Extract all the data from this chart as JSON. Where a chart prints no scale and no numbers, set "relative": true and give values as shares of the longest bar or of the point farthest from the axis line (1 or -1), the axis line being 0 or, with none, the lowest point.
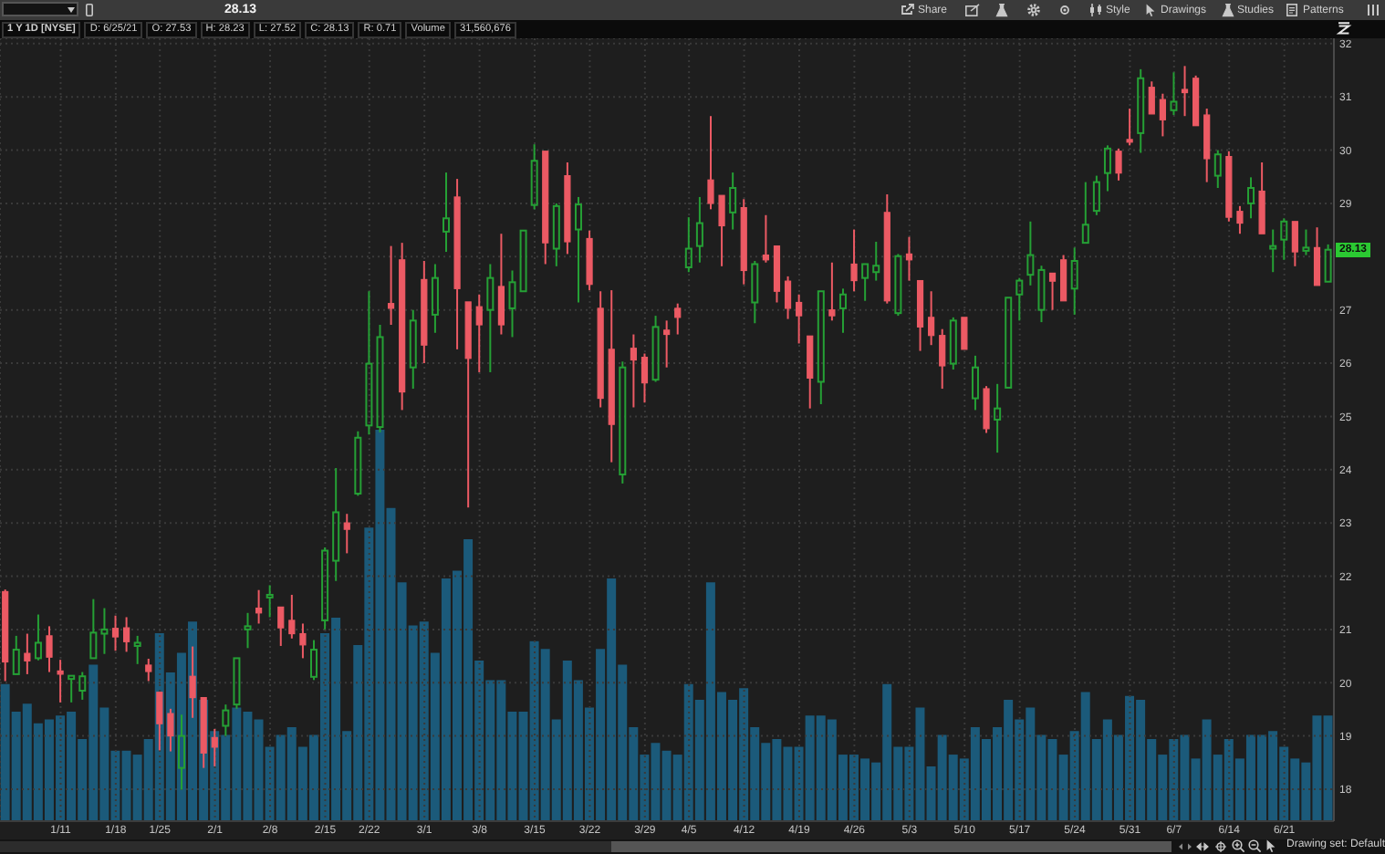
{
  "chart_data": [
    {
      "type": "candlestick",
      "title": "1 Y 1D [NYSE]",
      "categories": [
        null,
        null,
        null,
        null,
        null,
        "1/11",
        null,
        null,
        null,
        null,
        "1/18",
        null,
        null,
        null,
        "1/25",
        null,
        null,
        null,
        null,
        "2/1",
        null,
        null,
        null,
        null,
        "2/8",
        null,
        null,
        null,
        null,
        "2/15",
        null,
        null,
        null,
        "2/22",
        null,
        null,
        null,
        null,
        "3/1",
        null,
        null,
        null,
        null,
        "3/8",
        null,
        null,
        null,
        null,
        "3/15",
        null,
        null,
        null,
        null,
        "3/22",
        null,
        null,
        null,
        null,
        "3/29",
        null,
        null,
        null,
        "4/5",
        null,
        null,
        null,
        null,
        "4/12",
        null,
        null,
        null,
        null,
        "4/19",
        null,
        null,
        null,
        null,
        "4/26",
        null,
        null,
        null,
        null,
        "5/3",
        null,
        null,
        null,
        null,
        "5/10",
        null,
        null,
        null,
        null,
        "5/17",
        null,
        null,
        null,
        null,
        "5/24",
        null,
        null,
        null,
        null,
        "5/31",
        null,
        null,
        null,
        "6/7",
        null,
        null,
        null,
        null,
        "6/14",
        null,
        null,
        null,
        null,
        "6/21",
        null,
        null,
        null,
        null
      ],
      "ohlc": [
        [
          21.71,
          21.75,
          20.03,
          20.39
        ],
        [
          20.16,
          20.88,
          20.14,
          20.62
        ],
        [
          20.55,
          20.92,
          20.16,
          20.41
        ],
        [
          20.46,
          21.28,
          20.42,
          20.75
        ],
        [
          20.88,
          21.06,
          20.2,
          20.48
        ],
        [
          20.22,
          20.43,
          19.63,
          20.16
        ],
        [
          20.07,
          20.16,
          19.63,
          20.13
        ],
        [
          19.85,
          20.2,
          19.68,
          20.12
        ],
        [
          20.46,
          21.57,
          20.43,
          20.94
        ],
        [
          20.92,
          21.4,
          20.54,
          21.0
        ],
        [
          21.02,
          21.26,
          20.6,
          20.86
        ],
        [
          21.03,
          21.23,
          20.58,
          20.77
        ],
        [
          20.69,
          20.88,
          20.35,
          20.75
        ],
        [
          20.33,
          20.45,
          20.03,
          20.21
        ],
        [
          19.82,
          19.84,
          18.73,
          19.23
        ],
        [
          19.42,
          19.51,
          18.71,
          19.0
        ],
        [
          18.4,
          19.4,
          17.99,
          19.0
        ],
        [
          20.12,
          20.68,
          19.34,
          19.72
        ],
        [
          19.72,
          19.74,
          18.4,
          18.68
        ],
        [
          18.97,
          19.13,
          18.43,
          18.79
        ],
        [
          19.19,
          19.59,
          19.0,
          19.48
        ],
        [
          19.59,
          20.48,
          19.51,
          20.46
        ],
        [
          21.0,
          21.31,
          20.65,
          21.06
        ],
        [
          21.4,
          21.74,
          21.11,
          21.31
        ],
        [
          21.6,
          21.83,
          21.23,
          21.65
        ],
        [
          21.42,
          21.45,
          20.69,
          21.03
        ],
        [
          21.17,
          21.65,
          20.83,
          20.92
        ],
        [
          20.92,
          21.11,
          20.46,
          20.71
        ],
        [
          20.11,
          20.8,
          20.05,
          20.62
        ],
        [
          21.17,
          22.54,
          21.0,
          22.48
        ],
        [
          22.29,
          24.03,
          21.91,
          23.2
        ],
        [
          23.0,
          23.17,
          22.43,
          22.88
        ],
        [
          23.55,
          24.72,
          23.51,
          24.6
        ],
        [
          24.83,
          27.35,
          24.66,
          25.99
        ],
        [
          24.8,
          26.72,
          24.7,
          26.49
        ],
        [
          27.12,
          28.2,
          26.72,
          27.03
        ],
        [
          27.94,
          28.26,
          25.12,
          25.46
        ],
        [
          25.92,
          27.0,
          25.52,
          26.8
        ],
        [
          27.57,
          27.92,
          26.0,
          26.34
        ],
        [
          26.91,
          27.86,
          26.57,
          27.6
        ],
        [
          28.47,
          29.58,
          28.09,
          28.72
        ],
        [
          29.12,
          29.46,
          26.26,
          27.4
        ],
        [
          27.15,
          27.15,
          23.29,
          26.09
        ],
        [
          27.06,
          27.29,
          25.83,
          26.72
        ],
        [
          27.0,
          27.86,
          25.83,
          27.6
        ],
        [
          27.44,
          28.43,
          26.54,
          26.72
        ],
        [
          27.03,
          27.74,
          26.49,
          27.52
        ],
        [
          27.35,
          28.51,
          27.32,
          28.49
        ],
        [
          28.97,
          30.11,
          28.89,
          29.8
        ],
        [
          29.98,
          30.0,
          27.86,
          28.26
        ],
        [
          28.15,
          29.0,
          27.82,
          28.95
        ],
        [
          29.52,
          29.77,
          28.05,
          28.28
        ],
        [
          28.51,
          29.12,
          27.14,
          28.98
        ],
        [
          28.34,
          28.49,
          27.37,
          27.48
        ],
        [
          27.03,
          27.35,
          25.17,
          25.34
        ],
        [
          26.26,
          27.37,
          24.14,
          24.85
        ],
        [
          23.91,
          26.03,
          23.74,
          25.92
        ],
        [
          26.28,
          26.54,
          25.17,
          26.06
        ],
        [
          26.11,
          26.18,
          25.26,
          25.63
        ],
        [
          25.69,
          26.89,
          25.65,
          26.68
        ],
        [
          26.62,
          26.8,
          25.92,
          26.54
        ],
        [
          27.03,
          27.12,
          26.54,
          26.86
        ],
        [
          27.8,
          28.74,
          27.71,
          28.15
        ],
        [
          28.2,
          29.12,
          27.89,
          28.63
        ],
        [
          29.44,
          30.64,
          28.89,
          29.0
        ],
        [
          29.15,
          29.17,
          27.82,
          28.58
        ],
        [
          28.83,
          29.58,
          28.51,
          29.29
        ],
        [
          28.92,
          29.08,
          27.48,
          27.74
        ],
        [
          27.14,
          27.92,
          26.75,
          27.86
        ],
        [
          28.03,
          28.78,
          27.89,
          27.94
        ],
        [
          28.2,
          28.23,
          27.14,
          27.35
        ],
        [
          27.54,
          27.63,
          26.83,
          27.03
        ],
        [
          27.14,
          27.29,
          26.37,
          26.89
        ],
        [
          26.51,
          26.54,
          25.15,
          25.72
        ],
        [
          25.65,
          27.37,
          25.23,
          27.35
        ],
        [
          27.0,
          27.89,
          26.8,
          26.89
        ],
        [
          27.03,
          27.4,
          26.57,
          27.29
        ],
        [
          27.86,
          28.51,
          27.35,
          27.55
        ],
        [
          27.6,
          27.89,
          27.17,
          27.86
        ],
        [
          27.71,
          28.28,
          27.55,
          27.83
        ],
        [
          28.83,
          29.17,
          27.12,
          27.17
        ],
        [
          26.94,
          28.05,
          26.89,
          28.01
        ],
        [
          28.05,
          28.37,
          27.55,
          27.94
        ],
        [
          27.55,
          27.57,
          26.23,
          26.68
        ],
        [
          26.86,
          27.35,
          26.34,
          26.52
        ],
        [
          26.52,
          26.64,
          25.52,
          25.95
        ],
        [
          25.99,
          26.86,
          25.88,
          26.8
        ],
        [
          26.86,
          26.89,
          26.23,
          26.26
        ],
        [
          25.34,
          26.14,
          25.12,
          25.92
        ],
        [
          25.52,
          25.57,
          24.69,
          24.77
        ],
        [
          24.94,
          25.61,
          24.32,
          25.15
        ],
        [
          25.54,
          27.25,
          25.52,
          27.23
        ],
        [
          27.29,
          27.6,
          26.8,
          27.55
        ],
        [
          27.66,
          28.66,
          27.46,
          28.03
        ],
        [
          27.0,
          27.83,
          26.77,
          27.75
        ],
        [
          27.69,
          27.71,
          27.0,
          27.54
        ],
        [
          27.94,
          28.03,
          27.14,
          27.17
        ],
        [
          27.4,
          28.17,
          26.91,
          27.92
        ],
        [
          28.26,
          29.4,
          28.24,
          28.6
        ],
        [
          28.86,
          29.52,
          28.78,
          29.4
        ],
        [
          29.57,
          30.09,
          29.23,
          30.03
        ],
        [
          29.98,
          30.03,
          29.43,
          29.57
        ],
        [
          30.2,
          30.78,
          30.09,
          30.15
        ],
        [
          30.32,
          31.52,
          29.95,
          31.35
        ],
        [
          31.18,
          31.29,
          30.66,
          30.68
        ],
        [
          30.95,
          31.06,
          30.26,
          30.57
        ],
        [
          30.75,
          31.46,
          30.66,
          30.91
        ],
        [
          31.14,
          31.58,
          30.64,
          31.08
        ],
        [
          31.35,
          31.4,
          30.43,
          30.46
        ],
        [
          30.66,
          30.78,
          29.4,
          29.84
        ],
        [
          29.52,
          30.0,
          29.29,
          29.92
        ],
        [
          29.88,
          29.98,
          28.66,
          28.74
        ],
        [
          28.85,
          28.95,
          28.43,
          28.63
        ],
        [
          29.0,
          29.49,
          28.72,
          29.29
        ],
        [
          29.23,
          29.77,
          28.4,
          28.43
        ],
        [
          28.15,
          28.51,
          27.71,
          28.2
        ],
        [
          28.32,
          28.72,
          27.94,
          28.66
        ],
        [
          28.66,
          28.69,
          27.82,
          28.09
        ],
        [
          28.11,
          28.51,
          28.03,
          28.17
        ],
        [
          28.17,
          28.55,
          27.44,
          27.46
        ],
        [
          27.53,
          28.23,
          27.52,
          28.13
        ]
      ],
      "colors": [
        "#ec5a64",
        "#25a035",
        "#ec5a64",
        "#25a035",
        "#ec5a64",
        "#ec5a64",
        "#25a035",
        "#25a035",
        "#25a035",
        "#25a035",
        "#ec5a64",
        "#ec5a64",
        "#25a035",
        "#ec5a64",
        "#ec5a64",
        "#ec5a64",
        "#25a035",
        "#ec5a64",
        "#ec5a64",
        "#ec5a64",
        "#25a035",
        "#25a035",
        "#25a035",
        "#ec5a64",
        "#25a035",
        "#ec5a64",
        "#ec5a64",
        "#ec5a64",
        "#25a035",
        "#25a035",
        "#25a035",
        "#ec5a64",
        "#25a035",
        "#25a035",
        "#25a035",
        "#ec5a64",
        "#ec5a64",
        "#25a035",
        "#ec5a64",
        "#25a035",
        "#25a035",
        "#ec5a64",
        "#ec5a64",
        "#ec5a64",
        "#25a035",
        "#ec5a64",
        "#25a035",
        "#25a035",
        "#25a035",
        "#ec5a64",
        "#25a035",
        "#ec5a64",
        "#25a035",
        "#ec5a64",
        "#ec5a64",
        "#ec5a64",
        "#25a035",
        "#ec5a64",
        "#ec5a64",
        "#25a035",
        "#ec5a64",
        "#ec5a64",
        "#25a035",
        "#25a035",
        "#ec5a64",
        "#ec5a64",
        "#25a035",
        "#ec5a64",
        "#25a035",
        "#ec5a64",
        "#ec5a64",
        "#ec5a64",
        "#ec5a64",
        "#ec5a64",
        "#25a035",
        "#ec5a64",
        "#25a035",
        "#ec5a64",
        "#25a035",
        "#25a035",
        "#ec5a64",
        "#25a035",
        "#ec5a64",
        "#ec5a64",
        "#ec5a64",
        "#ec5a64",
        "#25a035",
        "#ec5a64",
        "#25a035",
        "#ec5a64",
        "#25a035",
        "#25a035",
        "#25a035",
        "#25a035",
        "#25a035",
        "#ec5a64",
        "#ec5a64",
        "#25a035",
        "#25a035",
        "#25a035",
        "#25a035",
        "#ec5a64",
        "#ec5a64",
        "#25a035",
        "#ec5a64",
        "#ec5a64",
        "#25a035",
        "#ec5a64",
        "#ec5a64",
        "#ec5a64",
        "#25a035",
        "#ec5a64",
        "#ec5a64",
        "#25a035",
        "#ec5a64",
        "#25a035",
        "#25a035",
        "#ec5a64",
        "#25a035",
        "#ec5a64",
        "#25a035"
      ],
      "ylim": [
        17.4,
        32.1
      ],
      "yticks": [
        18,
        19,
        20,
        21,
        22,
        23,
        24,
        25,
        26,
        27,
        {
          "value": 28,
          "label": null
        },
        29,
        30,
        31,
        32
      ],
      "grid": true,
      "annotations": [
        "28.13",
        "D: 6/25/21",
        "O: 27.53",
        "H: 28.23",
        "L: 27.52",
        "C: 28.13",
        "R: 0.71",
        "Volume",
        "31,560,676",
        "Share",
        "Style",
        "Drawings",
        "Studies",
        "Patterns",
        "Drawing set: Default",
        {
          "text": "28.13",
          "y": 28.13
        }
      ]
    },
    {
      "type": "bar",
      "relative": true,
      "color": "#1b5a7a",
      "categories": [
        null,
        null,
        null,
        null,
        null,
        null,
        null,
        null,
        null,
        null,
        null,
        null,
        null,
        null,
        null,
        null,
        null,
        null,
        null,
        null,
        null,
        null,
        null,
        null,
        null,
        null,
        null,
        null,
        null,
        null,
        null,
        null,
        null,
        null,
        null,
        null,
        null,
        null,
        null,
        null,
        null,
        null,
        null,
        null,
        null,
        null,
        null,
        null,
        null,
        null,
        null,
        null,
        null,
        null,
        null,
        null,
        null,
        null,
        null,
        null,
        null,
        null,
        null,
        null,
        null,
        null,
        null,
        null,
        null,
        null,
        null,
        null,
        null,
        null,
        null,
        null,
        null,
        null,
        null,
        null,
        null,
        null,
        null,
        null,
        null,
        null,
        null,
        null,
        null,
        null,
        null,
        null,
        null,
        null,
        null,
        null,
        null,
        null,
        null,
        null,
        null,
        null,
        null,
        null,
        null,
        null,
        null,
        null,
        null,
        null,
        null,
        null,
        null,
        null,
        null,
        null,
        null,
        null,
        null,
        null,
        null
      ],
      "values": [
        0.35,
        0.28,
        0.3,
        0.25,
        0.26,
        0.27,
        0.28,
        0.21,
        0.4,
        0.29,
        0.18,
        0.18,
        0.17,
        0.21,
        0.48,
        0.38,
        0.43,
        0.51,
        0.31,
        0.23,
        0.22,
        0.29,
        0.28,
        0.26,
        0.19,
        0.22,
        0.24,
        0.19,
        0.22,
        0.48,
        0.52,
        0.23,
        0.45,
        0.75,
        1.0,
        0.8,
        0.61,
        0.5,
        0.51,
        0.43,
        0.62,
        0.64,
        0.72,
        0.41,
        0.36,
        0.36,
        0.28,
        0.28,
        0.46,
        0.44,
        0.26,
        0.41,
        0.36,
        0.29,
        0.44,
        0.62,
        0.4,
        0.24,
        0.17,
        0.2,
        0.18,
        0.17,
        0.35,
        0.31,
        0.61,
        0.33,
        0.31,
        0.34,
        0.24,
        0.2,
        0.21,
        0.19,
        0.19,
        0.27,
        0.27,
        0.26,
        0.17,
        0.17,
        0.16,
        0.15,
        0.35,
        0.19,
        0.19,
        0.29,
        0.14,
        0.22,
        0.17,
        0.16,
        0.24,
        0.21,
        0.24,
        0.31,
        0.26,
        0.29,
        0.22,
        0.21,
        0.17,
        0.23,
        0.33,
        0.21,
        0.26,
        0.22,
        0.32,
        0.31,
        0.21,
        0.17,
        0.21,
        0.22,
        0.16,
        0.26,
        0.17,
        0.21,
        0.16,
        0.22,
        0.22,
        0.23,
        0.19,
        0.16,
        0.15,
        0.27,
        0.27
      ]
    }
  ]
}
